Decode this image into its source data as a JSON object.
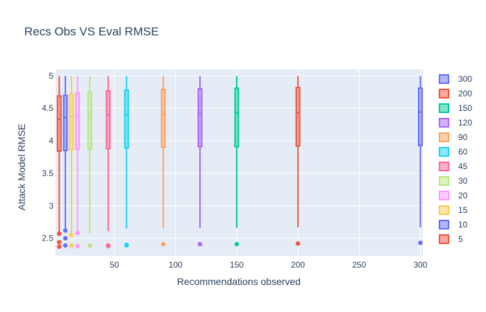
{
  "chart_data": {
    "type": "box",
    "title": "Recs Obs VS Eval RMSE",
    "xlabel": "Recommendations observed",
    "ylabel": "Attack Model RMSE",
    "xlim": [
      2,
      302
    ],
    "ylim": [
      2.23,
      5.1
    ],
    "xticks": [
      50,
      100,
      150,
      200,
      250,
      300
    ],
    "yticks": [
      2.5,
      3,
      3.5,
      4,
      4.5,
      5
    ],
    "xtick_labels": [
      "50",
      "100",
      "150",
      "200",
      "250",
      "300"
    ],
    "ytick_labels": [
      "2.5",
      "3",
      "3.5",
      "4",
      "4.5",
      "5"
    ],
    "grid": true,
    "legend_position": "right",
    "series": [
      {
        "name": "300",
        "x": 300,
        "color": "#636efa",
        "whisker_low": 2.67,
        "q1": 3.93,
        "median": 4.44,
        "q3": 4.81,
        "whisker_high": 5.0,
        "outliers": [
          2.43
        ]
      },
      {
        "name": "200",
        "x": 200,
        "color": "#EF553B",
        "whisker_low": 2.67,
        "q1": 3.92,
        "median": 4.43,
        "q3": 4.82,
        "whisker_high": 5.0,
        "outliers": [
          2.42
        ]
      },
      {
        "name": "150",
        "x": 150,
        "color": "#00cc96",
        "whisker_low": 2.66,
        "q1": 3.91,
        "median": 4.43,
        "q3": 4.81,
        "whisker_high": 5.0,
        "outliers": [
          2.41
        ]
      },
      {
        "name": "120",
        "x": 120,
        "color": "#ab63fa",
        "whisker_low": 2.66,
        "q1": 3.91,
        "median": 4.42,
        "q3": 4.8,
        "whisker_high": 5.0,
        "outliers": [
          2.41
        ]
      },
      {
        "name": "90",
        "x": 90,
        "color": "#FFA15A",
        "whisker_low": 2.65,
        "q1": 3.9,
        "median": 4.41,
        "q3": 4.79,
        "whisker_high": 5.0,
        "outliers": [
          2.41
        ]
      },
      {
        "name": "60",
        "x": 60,
        "color": "#19d3f3",
        "whisker_low": 2.65,
        "q1": 3.89,
        "median": 4.4,
        "q3": 4.78,
        "whisker_high": 5.0,
        "outliers": [
          2.4,
          2.39
        ]
      },
      {
        "name": "45",
        "x": 45,
        "color": "#FF6692",
        "whisker_low": 2.61,
        "q1": 3.88,
        "median": 4.4,
        "q3": 4.77,
        "whisker_high": 5.0,
        "outliers": [
          2.39,
          2.38
        ]
      },
      {
        "name": "30",
        "x": 30,
        "color": "#B6E880",
        "whisker_low": 2.58,
        "q1": 3.87,
        "median": 4.39,
        "q3": 4.75,
        "whisker_high": 5.0,
        "outliers": [
          2.39
        ]
      },
      {
        "name": "20",
        "x": 20,
        "color": "#FF97FF",
        "whisker_low": 2.58,
        "q1": 3.87,
        "median": 4.38,
        "q3": 4.74,
        "whisker_high": 5.0,
        "outliers": [
          2.58,
          2.38
        ]
      },
      {
        "name": "15",
        "x": 15,
        "color": "#FECB52",
        "whisker_low": 2.56,
        "q1": 3.86,
        "median": 4.37,
        "q3": 4.72,
        "whisker_high": 5.0,
        "outliers": [
          2.55,
          2.39
        ]
      },
      {
        "name": "10",
        "x": 10,
        "color": "#636efa",
        "whisker_low": 2.62,
        "q1": 3.85,
        "median": 4.36,
        "q3": 4.7,
        "whisker_high": 5.0,
        "outliers": [
          2.62,
          2.5,
          2.39
        ]
      },
      {
        "name": "5",
        "x": 5,
        "color": "#EF553B",
        "whisker_low": 2.58,
        "q1": 3.84,
        "median": 4.33,
        "q3": 4.69,
        "whisker_high": 5.0,
        "outliers": [
          2.57,
          2.44,
          2.37
        ]
      }
    ]
  }
}
